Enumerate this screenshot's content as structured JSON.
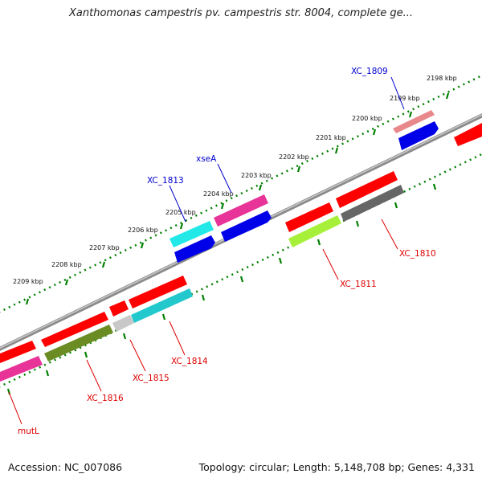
{
  "title": "Xanthomonas campestris pv. campestris str. 8004, complete ge...",
  "accession": "Accession: NC_007086",
  "topology": "Topology: circular; Length: 5,148,708 bp; Genes: 4,331",
  "colors": {
    "backbone": "#8c8c8c",
    "tick_green": "#008000",
    "label_red": "#dd0000",
    "label_blue": "#0000cc"
  },
  "ticks": [
    "2198 kbp",
    "2199 kbp",
    "2200 kbp",
    "2201 kbp",
    "2202 kbp",
    "2203 kbp",
    "2204 kbp",
    "2205 kbp",
    "2206 kbp",
    "2207 kbp",
    "2208 kbp",
    "2209 kbp"
  ],
  "genes_top": [
    {
      "label": "XC_1809",
      "color": "#e8888a"
    },
    {
      "label": "xseA",
      "color": "#e83399"
    },
    {
      "label": "XC_1813",
      "color": "#22e8e8"
    }
  ],
  "genes_bottom": [
    {
      "label": "XC_1810",
      "color": "#666666"
    },
    {
      "label": "XC_1811",
      "color": "#a6f03a"
    },
    {
      "label": "XC_1814",
      "color": "#22c8cc"
    },
    {
      "label": "XC_1815",
      "color": "#c8c8c8"
    },
    {
      "label": "XC_1816",
      "color": "#6b8c22"
    },
    {
      "label": "mutL",
      "color": "#e83399"
    }
  ]
}
